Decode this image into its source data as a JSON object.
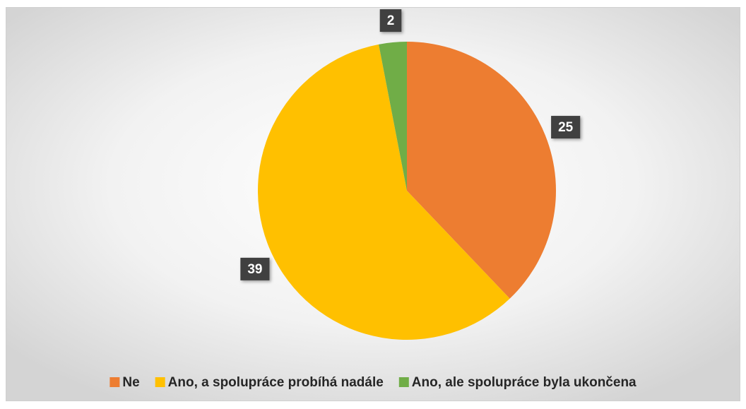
{
  "chart_data": {
    "type": "pie",
    "categories": [
      "Ne",
      "Ano, a spolupráce probíhá nadále",
      "Ano, ale spolupráce byla ukončena"
    ],
    "values": [
      25,
      39,
      2
    ],
    "colors": [
      "#ed7d31",
      "#ffc000",
      "#70ad47"
    ],
    "legend": "bottom"
  }
}
